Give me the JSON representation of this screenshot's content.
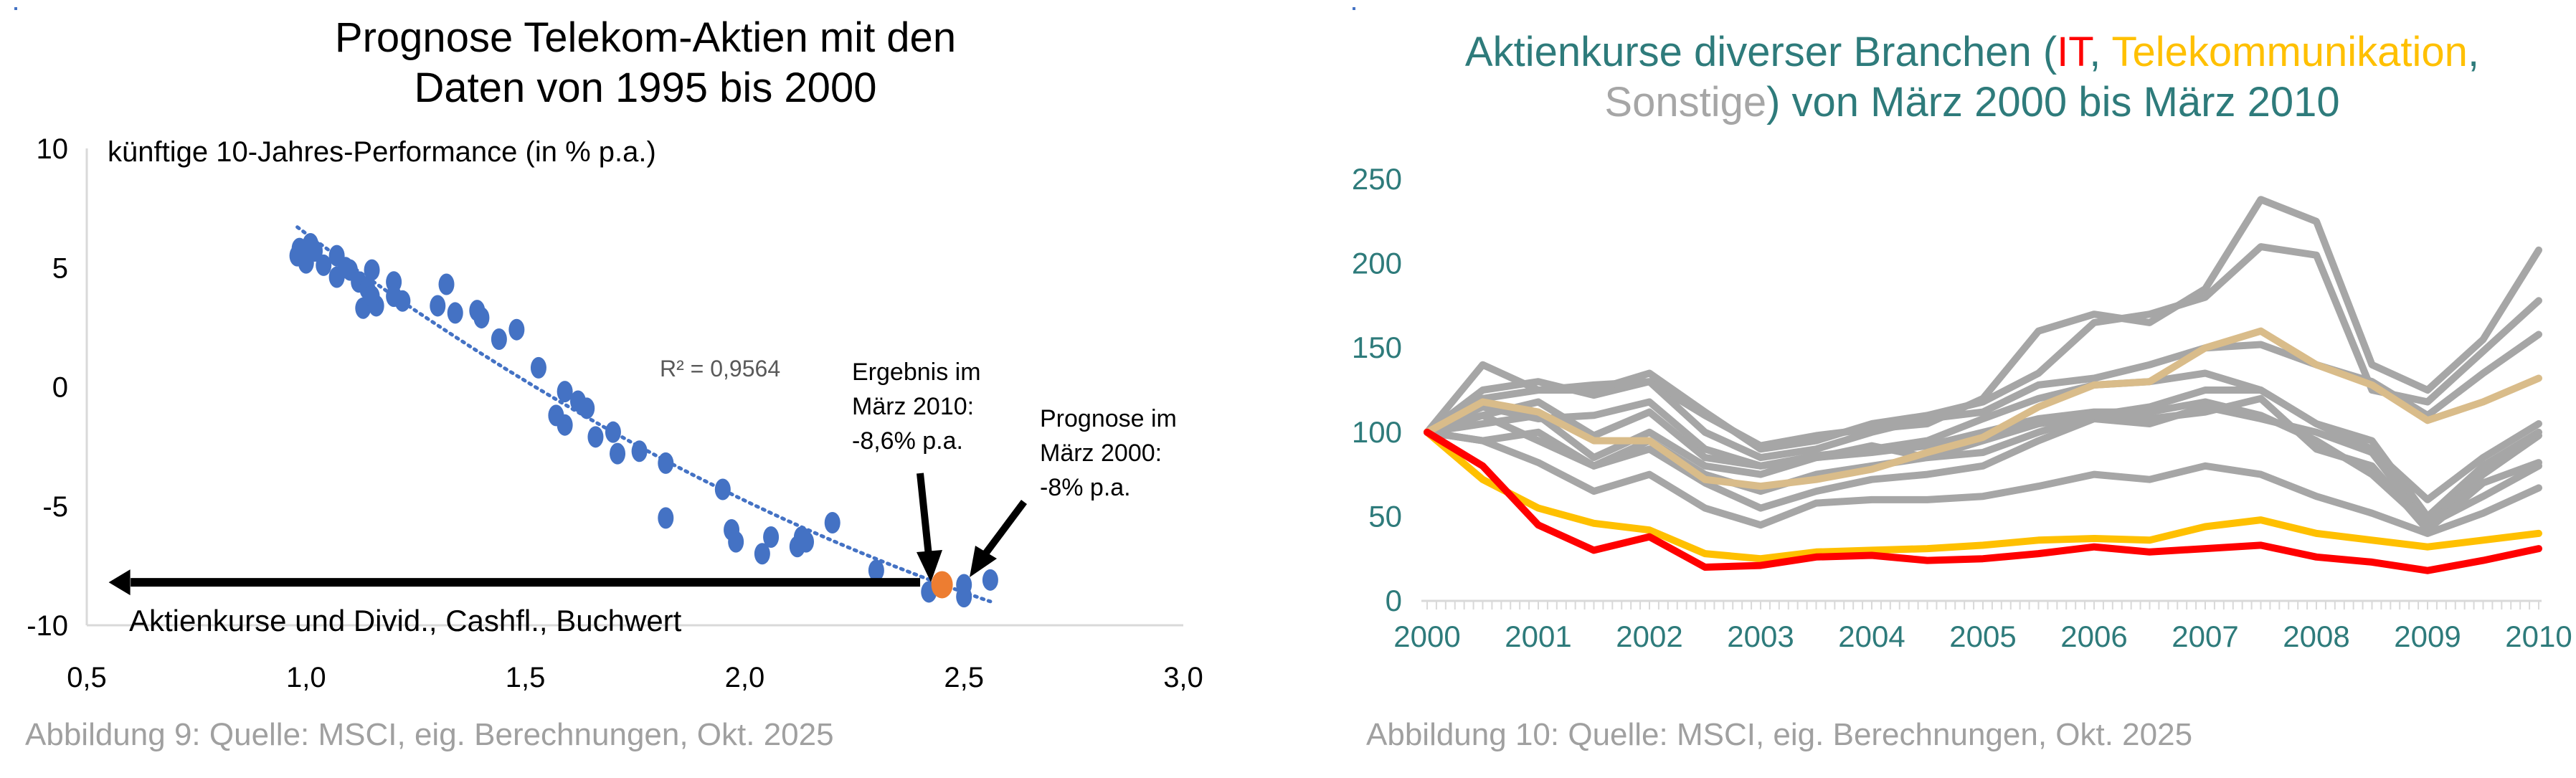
{
  "left": {
    "title_line1": "Prognose Telekom-Aktien mit den",
    "title_line2": "Daten von 1995 bis 2000",
    "caption": "Abbildung 9: Quelle: MSCI, eig. Berechnungen, Okt. 2025"
  },
  "right": {
    "title_part1": "Aktienkurse diverser Branchen (",
    "title_it": "IT",
    "title_sep": ", ",
    "title_tel": "Telekommunikation",
    "title_comma": ",",
    "title_sonst": "Sonstige",
    "title_part2": ") von März 2000 bis März 2010",
    "caption": "Abbildung 10: Quelle: MSCI, eig. Berechnungen, Okt. 2025"
  },
  "chart_data": [
    {
      "type": "scatter",
      "ylabel": "künftige 10-Jahres-Performance (in % p.a.)",
      "xlim": [
        0.5,
        3.0
      ],
      "ylim": [
        -10,
        10
      ],
      "xticks": [
        "0,5",
        "1,0",
        "1,5",
        "2,0",
        "2,5",
        "3,0"
      ],
      "yticks": [
        "10",
        "5",
        "0",
        "-5",
        "-10"
      ],
      "xtick_values": [
        0.5,
        1.0,
        1.5,
        2.0,
        2.5,
        3.0
      ],
      "ytick_values": [
        10,
        5,
        0,
        -5,
        -10
      ],
      "r_squared_label": "R² = 0,9564",
      "colors": {
        "points": "#4472c4",
        "highlight": "#ed7d31",
        "trend": "#4472c4"
      },
      "points": [
        [
          0.98,
          5.5
        ],
        [
          0.985,
          5.8
        ],
        [
          1.0,
          5.2
        ],
        [
          1.01,
          6.0
        ],
        [
          1.02,
          5.7
        ],
        [
          1.04,
          5.1
        ],
        [
          1.07,
          5.5
        ],
        [
          1.07,
          4.6
        ],
        [
          1.09,
          5.0
        ],
        [
          1.1,
          4.9
        ],
        [
          1.12,
          4.4
        ],
        [
          1.13,
          3.3
        ],
        [
          1.14,
          4.1
        ],
        [
          1.15,
          4.9
        ],
        [
          1.16,
          3.4
        ],
        [
          1.15,
          3.8
        ],
        [
          1.2,
          4.4
        ],
        [
          1.2,
          3.8
        ],
        [
          1.22,
          3.6
        ],
        [
          1.3,
          3.4
        ],
        [
          1.32,
          4.3
        ],
        [
          1.34,
          3.1
        ],
        [
          1.39,
          3.2
        ],
        [
          1.4,
          2.9
        ],
        [
          1.44,
          2.0
        ],
        [
          1.48,
          2.4
        ],
        [
          1.53,
          0.8
        ],
        [
          1.59,
          -0.2
        ],
        [
          1.57,
          -1.2
        ],
        [
          1.59,
          -1.6
        ],
        [
          1.62,
          -0.6
        ],
        [
          1.64,
          -0.9
        ],
        [
          1.66,
          -2.1
        ],
        [
          1.7,
          -1.9
        ],
        [
          1.71,
          -2.8
        ],
        [
          1.76,
          -2.7
        ],
        [
          1.82,
          -3.2
        ],
        [
          1.82,
          -5.5
        ],
        [
          1.95,
          -4.3
        ],
        [
          1.97,
          -6.0
        ],
        [
          1.98,
          -6.5
        ],
        [
          2.04,
          -7.0
        ],
        [
          2.06,
          -6.3
        ],
        [
          2.12,
          -6.7
        ],
        [
          2.13,
          -6.3
        ],
        [
          2.14,
          -6.5
        ],
        [
          2.2,
          -5.7
        ],
        [
          2.3,
          -7.7
        ],
        [
          2.42,
          -8.6
        ],
        [
          2.5,
          -8.8
        ],
        [
          2.5,
          -8.3
        ],
        [
          2.56,
          -8.1
        ]
      ],
      "highlight_point": [
        2.45,
        -8.3
      ],
      "trendline": {
        "type": "polynomial",
        "x_range": [
          0.98,
          2.56
        ],
        "coefficients_centered_at_0_98": [
          6.7,
          -13.62,
          2.33
        ]
      },
      "annotations": {
        "result": [
          "Ergebnis im",
          "März 2010:",
          "-8,6% p.a."
        ],
        "forecast": [
          "Prognose im",
          "März 2000:",
          "-8% p.a."
        ],
        "arrow_label": "Aktienkurse und Divid., Cashfl., Buchwert"
      }
    },
    {
      "type": "line",
      "xlim": [
        2000,
        2010
      ],
      "ylim": [
        0,
        250
      ],
      "xticks": [
        "2000",
        "2001",
        "2002",
        "2003",
        "2004",
        "2005",
        "2006",
        "2007",
        "2008",
        "2009",
        "2010"
      ],
      "yticks": [
        "250",
        "200",
        "150",
        "100",
        "50",
        "0"
      ],
      "ytick_values": [
        250,
        200,
        150,
        100,
        50,
        0
      ],
      "x": [
        2000,
        2000.5,
        2001,
        2001.5,
        2002,
        2002.5,
        2003,
        2003.5,
        2004,
        2004.5,
        2005,
        2005.5,
        2006,
        2006.5,
        2007,
        2007.5,
        2008,
        2008.5,
        2009,
        2009.5,
        2010
      ],
      "series": [
        {
          "name": "Sonstige 1",
          "color": "#a6a6a6",
          "values": [
            100,
            125,
            130,
            122,
            130,
            110,
            92,
            98,
            102,
            105,
            120,
            160,
            170,
            165,
            185,
            238,
            225,
            140,
            125,
            155,
            208
          ]
        },
        {
          "name": "Sonstige 2",
          "color": "#a6a6a6",
          "values": [
            100,
            120,
            125,
            125,
            135,
            112,
            90,
            95,
            105,
            110,
            118,
            135,
            165,
            170,
            180,
            210,
            205,
            125,
            118,
            148,
            178
          ]
        },
        {
          "name": "Sonstige 3",
          "color": "#a6a6a6",
          "values": [
            100,
            140,
            125,
            128,
            130,
            100,
            85,
            90,
            100,
            108,
            112,
            128,
            132,
            140,
            150,
            152,
            140,
            130,
            110,
            135,
            158
          ]
        },
        {
          "name": "Sonstige 4",
          "color": "#a6a6a6",
          "values": [
            100,
            110,
            118,
            98,
            112,
            85,
            80,
            86,
            90,
            95,
            108,
            120,
            128,
            130,
            135,
            125,
            105,
            90,
            60,
            85,
            105
          ]
        },
        {
          "name": "Sonstige 5",
          "color": "#a6a6a6",
          "values": [
            100,
            105,
            110,
            85,
            100,
            80,
            75,
            85,
            88,
            92,
            100,
            108,
            112,
            112,
            118,
            110,
            95,
            75,
            45,
            75,
            98
          ]
        },
        {
          "name": "Sonstige 6",
          "color": "#a6a6a6",
          "values": [
            100,
            95,
            100,
            80,
            95,
            75,
            65,
            75,
            80,
            85,
            95,
            105,
            110,
            108,
            112,
            120,
            90,
            80,
            42,
            70,
            82
          ]
        },
        {
          "name": "Sonstige 7",
          "color": "#a6a6a6",
          "values": [
            100,
            95,
            82,
            65,
            75,
            55,
            45,
            58,
            60,
            60,
            62,
            68,
            75,
            72,
            80,
            75,
            62,
            52,
            40,
            52,
            67
          ]
        },
        {
          "name": "Sonstige 8",
          "color": "#a6a6a6",
          "values": [
            100,
            110,
            95,
            80,
            90,
            70,
            55,
            65,
            72,
            75,
            80,
            95,
            108,
            105,
            115,
            108,
            100,
            88,
            45,
            62,
            80
          ]
        },
        {
          "name": "Sonstige 9",
          "color": "#a6a6a6",
          "values": [
            100,
            115,
            108,
            110,
            118,
            90,
            80,
            85,
            92,
            85,
            88,
            100,
            110,
            115,
            125,
            125,
            105,
            95,
            50,
            80,
            100
          ]
        },
        {
          "name": "Sonstige 10",
          "color": "#d9bc8a",
          "values": [
            100,
            118,
            112,
            95,
            95,
            72,
            68,
            72,
            78,
            88,
            97,
            115,
            128,
            130,
            150,
            160,
            140,
            128,
            107,
            118,
            132
          ]
        },
        {
          "name": "Telekommunikation",
          "color": "#ffc000",
          "values": [
            100,
            72,
            55,
            46,
            42,
            28,
            25,
            29,
            30,
            31,
            33,
            36,
            37,
            36,
            44,
            48,
            40,
            36,
            32,
            36,
            40
          ]
        },
        {
          "name": "IT",
          "color": "#ff0000",
          "values": [
            100,
            80,
            45,
            30,
            38,
            20,
            21,
            26,
            27,
            24,
            25,
            28,
            32,
            29,
            31,
            33,
            26,
            23,
            18,
            24,
            31
          ]
        }
      ]
    }
  ]
}
